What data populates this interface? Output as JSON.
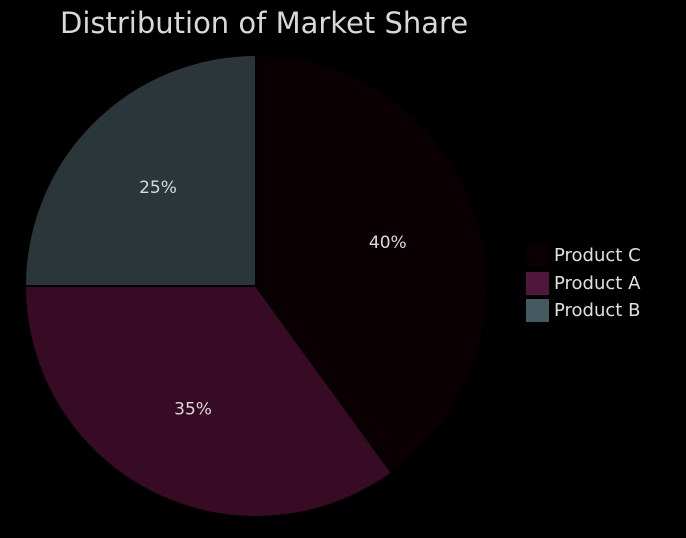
{
  "chart_data": {
    "type": "pie",
    "title": "Distribution of Market Share",
    "categories": [
      "Product C",
      "Product A",
      "Product B"
    ],
    "values": [
      40,
      35,
      25
    ],
    "value_labels": [
      "40%",
      "35%",
      "25%"
    ],
    "colors": [
      "#0a0003",
      "#380b24",
      "#2a3639"
    ],
    "legend_colors": [
      "#0a0003",
      "#50163b",
      "#455961"
    ],
    "start_angle_deg": 90,
    "direction": "clockwise",
    "legend": {
      "placement": "right",
      "order": [
        "Product C",
        "Product A",
        "Product B"
      ]
    }
  },
  "colors": {
    "background": "#000000",
    "text": "#d9d9d9",
    "slice_edge": "#000000"
  }
}
